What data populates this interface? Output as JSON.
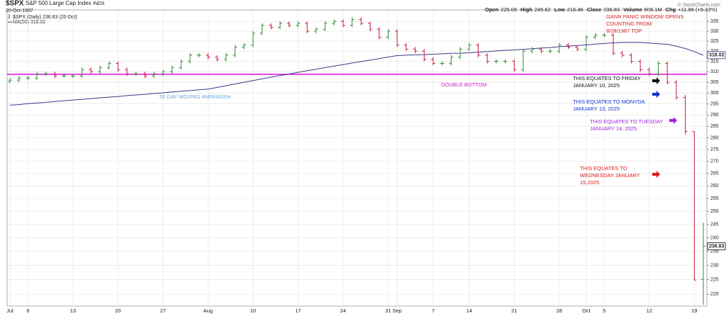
{
  "chart_data": {
    "type": "ohlc",
    "title": "$SPX",
    "subtitle": "S&P 500 Large Cap Index",
    "exchange": "INDX",
    "date": "20-Oct-1987",
    "quote": [
      {
        "label": "Open",
        "value": "225.06"
      },
      {
        "label": "High",
        "value": "245.62"
      },
      {
        "label": "Low",
        "value": "216.46"
      },
      {
        "label": "Close",
        "value": "236.83"
      },
      {
        "label": "Volume",
        "value": "608.1M"
      },
      {
        "label": "Chg",
        "value": "+11.99 (+5.33%)"
      }
    ],
    "watermark": "© StockCharts.com",
    "log_scale": true,
    "grid": true,
    "ylim": [
      216,
      341
    ],
    "yticks": [
      220,
      225,
      230,
      235,
      240,
      245,
      250,
      255,
      260,
      265,
      270,
      275,
      280,
      285,
      290,
      295,
      300,
      305,
      310,
      315,
      320,
      325,
      330,
      335
    ],
    "categories": [
      "Jul",
      null,
      "6",
      null,
      null,
      null,
      null,
      "13",
      null,
      null,
      null,
      null,
      "20",
      null,
      null,
      null,
      null,
      "27",
      null,
      null,
      null,
      null,
      "Aug",
      null,
      null,
      null,
      null,
      "10",
      null,
      null,
      null,
      null,
      "17",
      null,
      null,
      null,
      null,
      "24",
      null,
      null,
      null,
      null,
      "31",
      "Sep",
      null,
      null,
      null,
      "7",
      null,
      null,
      null,
      "14",
      null,
      null,
      null,
      null,
      "21",
      null,
      null,
      null,
      null,
      "28",
      null,
      null,
      "Oct",
      null,
      "5",
      null,
      null,
      null,
      null,
      "12",
      null,
      null,
      null,
      null,
      "19",
      null
    ],
    "ohlc": {
      "name": "$SPX (Daily) 236.83 (20 Oct)",
      "up_color": "#2e8b2e",
      "down_color": "#c8163a",
      "last_value_label": "236.83",
      "open": [
        305.5,
        306,
        307,
        307,
        309,
        309,
        308,
        308,
        308,
        311,
        310,
        312,
        314,
        311,
        309,
        309,
        308,
        309,
        310,
        312,
        315,
        318,
        318,
        317,
        316,
        318,
        322,
        323,
        329,
        333,
        332,
        334,
        333,
        334,
        330,
        331,
        334,
        335,
        333,
        336,
        334,
        331,
        327,
        330,
        323,
        321,
        320,
        316,
        314,
        314,
        317,
        321,
        323,
        318,
        315,
        315,
        315,
        311,
        320,
        321,
        320,
        320,
        323,
        322,
        321,
        327,
        328,
        328,
        319,
        318,
        315,
        311,
        309,
        314,
        305,
        298,
        282.7,
        225.06
      ],
      "high": [
        307,
        308,
        308,
        310,
        310,
        310,
        309,
        309,
        312,
        312,
        313,
        315,
        315,
        312,
        310,
        310,
        310,
        311,
        313,
        316,
        319,
        319,
        319,
        318,
        319,
        323,
        324,
        330,
        334,
        334,
        335,
        335,
        335,
        335,
        332,
        335,
        336,
        336,
        337.2,
        337,
        335,
        332,
        331,
        331,
        324,
        322,
        321,
        317,
        315,
        318,
        322,
        324,
        324,
        319,
        316,
        316,
        316,
        321,
        322,
        322,
        321,
        324,
        324,
        323,
        328,
        329,
        329,
        329,
        320,
        319,
        316,
        312,
        315,
        315,
        306,
        299,
        282.7,
        245.62
      ],
      "low": [
        304.5,
        305,
        306,
        306,
        308,
        307,
        307,
        307,
        307,
        309,
        309,
        311,
        310,
        308,
        308,
        307,
        307,
        308,
        309,
        311,
        314,
        317,
        316,
        315,
        315,
        317,
        321,
        322,
        328,
        331,
        331,
        332,
        332,
        329,
        329,
        330,
        333,
        332,
        332,
        333,
        330,
        326,
        326,
        322,
        320,
        319,
        315,
        313,
        313,
        313,
        316,
        320,
        317,
        314,
        314,
        314,
        310,
        310,
        319,
        319,
        319,
        319,
        321,
        320,
        320,
        326,
        327,
        318,
        317,
        314,
        310,
        308,
        308,
        304,
        297,
        281.5,
        224.84,
        216.46
      ],
      "close": [
        306,
        307,
        307,
        309,
        309,
        308,
        308,
        308,
        311,
        310,
        312,
        314,
        311,
        309,
        309,
        308,
        309,
        310,
        312,
        315,
        318,
        318,
        317,
        316,
        318,
        322,
        323,
        329,
        333,
        332,
        334,
        333,
        334,
        330,
        331,
        334,
        335,
        333,
        336,
        334,
        331,
        327,
        330,
        323,
        321,
        320,
        316,
        314,
        314,
        317,
        321,
        323,
        318,
        315,
        315,
        315,
        311,
        320,
        321,
        320,
        320,
        323,
        322,
        321,
        327,
        328,
        328,
        319,
        318,
        315,
        311,
        309,
        314,
        305,
        298,
        282.7,
        224.84,
        236.83
      ]
    },
    "ma": {
      "name": "MA(50) 318.02",
      "color": "#3a3a8c",
      "last_value_label": "318.02",
      "values": [
        294.4,
        294.7,
        295.1,
        295.4,
        295.7,
        296.1,
        296.4,
        296.8,
        297.1,
        297.4,
        297.8,
        298.1,
        298.4,
        298.8,
        299.1,
        299.4,
        299.8,
        300.1,
        300.5,
        300.8,
        301.1,
        301.5,
        301.8,
        302.6,
        303.4,
        304.2,
        305.0,
        305.8,
        306.6,
        307.4,
        308.2,
        308.9,
        309.7,
        310.5,
        311.2,
        312.0,
        312.7,
        313.4,
        314.2,
        314.9,
        315.6,
        316.3,
        317.1,
        317.8,
        318.0,
        318.2,
        318.3,
        318.5,
        318.7,
        318.9,
        319.0,
        319.2,
        319.5,
        319.8,
        320.1,
        320.4,
        320.6,
        320.9,
        321.2,
        321.5,
        321.8,
        322.2,
        322.5,
        322.8,
        323.1,
        323.5,
        323.8,
        324.1,
        324.3,
        324.4,
        324.3,
        324.0,
        323.7,
        323.4,
        322.5,
        321.3,
        319.8,
        318.02
      ]
    },
    "horizontal_line": {
      "value": 308.8,
      "color": "#e01ee0"
    },
    "annotations": [
      {
        "lines": [
          "GANN PANIC WINDOW OPENS",
          "COUNTING FROM",
          "8/28/1987 TOP"
        ],
        "color": "#d42020"
      },
      {
        "lines": [
          "DOUBLE BOTTOM"
        ],
        "color": "#d020d0"
      },
      {
        "lines": [
          "50 DAY MOVING AVERAGEH"
        ],
        "color": "#6aa0d8"
      },
      {
        "lines": [
          "THIS EQUATES TO FRIDAY",
          "JANUARY 10, 2025"
        ],
        "color": "#111111"
      },
      {
        "lines": [
          "THIS EQUATES TO MONYDA",
          "JANUARY 13, 2025"
        ],
        "color": "#1030d0"
      },
      {
        "lines": [
          "THIS EQUATES TO TUESDAY",
          "JANUARY 14, 2025."
        ],
        "color": "#a020e0"
      },
      {
        "lines": [
          "THIS EQUATES TO",
          "WEDNESDAY JANUARY",
          "15,2025"
        ],
        "color": "#e01818"
      }
    ]
  }
}
